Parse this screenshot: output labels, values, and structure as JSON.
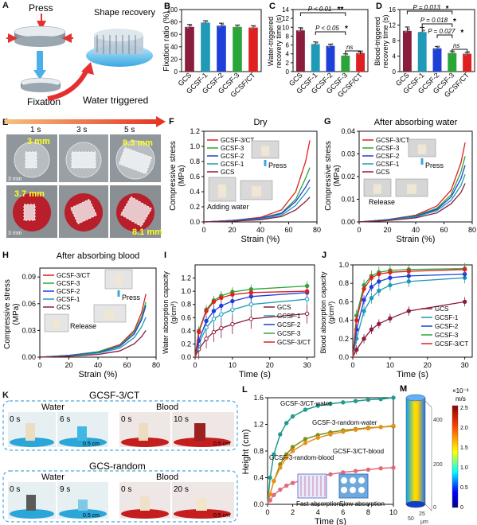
{
  "colors": {
    "GCS": "#8a1c3c",
    "GCSF1": "#1f9bb8",
    "GCSF2": "#1e3fd8",
    "GCSF3": "#2aa638",
    "GCSFCT": "#e02020",
    "pink": "#e06a7a",
    "teal": "#1f9b8f",
    "olive": "#7f8f1a",
    "orange": "#e7901a"
  },
  "panelA": {
    "letter": "A",
    "press": "Press",
    "shape_recovery": "Shape recovery",
    "fixation": "Fixation",
    "water_triggered": "Water triggered"
  },
  "panelE": {
    "letter": "E",
    "times": [
      "1 s",
      "3 s",
      "5 s"
    ],
    "labels": [
      "3 mm",
      "8.3 mm",
      "3.7 mm",
      "8.1 mm"
    ],
    "scale": [
      "3 mm",
      "3 mm"
    ]
  },
  "panelK": {
    "letter": "K",
    "groups": [
      {
        "title": "GCSF-3/CT",
        "water": "Water",
        "blood": "Blood",
        "times": [
          "0 s",
          "6 s",
          "0 s",
          "10 s"
        ],
        "scale": [
          "0.5 cm",
          "0.5 cm"
        ]
      },
      {
        "title": "GCS-random",
        "water": "Water",
        "blood": "Blood",
        "times": [
          "0 s",
          "9 s",
          "0 s",
          "20 s"
        ],
        "scale": [
          "0.5 cm",
          "0.5 cm"
        ]
      }
    ]
  },
  "panelM": {
    "letter": "M",
    "unit_top": "×10⁻³",
    "unit": "m/s",
    "ticks": [
      "2.5",
      "2.0",
      "1.5",
      "1.0",
      "0.5",
      "0"
    ],
    "axis_ticks": [
      "400",
      "200",
      "0"
    ],
    "bottom_ticks": [
      "50",
      "25"
    ],
    "um": "μm"
  },
  "chart_data": [
    {
      "panel": "B",
      "type": "bar",
      "categories": [
        "GCS",
        "GCSF-1",
        "GCSF-2",
        "GCSF-3",
        "GCSF/CT"
      ],
      "values": [
        72,
        79,
        74,
        72,
        71
      ],
      "errors": [
        4,
        3,
        4,
        3,
        3
      ],
      "ylabel": "Fixation ratio (%)",
      "ylim": [
        0,
        100
      ],
      "yticks": [
        "0",
        "20",
        "40",
        "60",
        "80",
        "100"
      ]
    },
    {
      "panel": "C",
      "type": "bar",
      "categories": [
        "GCS",
        "GCSF-1",
        "GCSF-2",
        "GCSF-3",
        "GCSF/CT"
      ],
      "values": [
        9.3,
        6.2,
        5.8,
        3.6,
        4.2
      ],
      "errors": [
        0.6,
        0.5,
        0.4,
        0.4,
        0.3
      ],
      "ylabel": "Water-triggered recovery time (s)",
      "ylim": [
        0,
        14
      ],
      "yticks": [
        "0",
        "2",
        "4",
        "6",
        "8",
        "10",
        "12",
        "14"
      ],
      "annotations": [
        {
          "text": "P < 0.01",
          "stars": "**",
          "from": 0,
          "to": 3
        },
        {
          "text": "P < 0.05",
          "stars": "*",
          "from": 1,
          "to": 3
        },
        {
          "text": "ns",
          "stars": "",
          "from": 3,
          "to": 4
        }
      ]
    },
    {
      "panel": "D",
      "type": "bar",
      "categories": [
        "GCS",
        "GCSF-1",
        "GCSF-2",
        "GCSF-3",
        "GCSF/CT"
      ],
      "values": [
        10.5,
        10.2,
        6.0,
        4.8,
        4.6
      ],
      "errors": [
        1.0,
        1.2,
        0.5,
        0.5,
        0.4
      ],
      "ylabel": "Blood-triggered recovery time (s)",
      "ylim": [
        0,
        16
      ],
      "yticks": [
        "0",
        "4",
        "8",
        "12",
        "16"
      ],
      "annotations": [
        {
          "text": "P = 0.013",
          "stars": "*",
          "from": 0,
          "to": 3
        },
        {
          "text": "P = 0.018",
          "stars": "*",
          "from": 1,
          "to": 3
        },
        {
          "text": "P = 0.027",
          "stars": "*",
          "from": 2,
          "to": 3
        },
        {
          "text": "ns",
          "stars": "",
          "from": 3,
          "to": 4
        }
      ]
    },
    {
      "panel": "F",
      "type": "line",
      "title": "Dry",
      "xlabel": "Strain (%)",
      "ylabel": "Compressive stress (MPa)",
      "xlim": [
        0,
        80
      ],
      "ylim": [
        0,
        1.2
      ],
      "xticks": [
        "0",
        "20",
        "40",
        "60",
        "80"
      ],
      "yticks": [
        "0.0",
        "0.2",
        "0.4",
        "0.6",
        "0.8",
        "1.0",
        "1.2"
      ],
      "series": [
        {
          "name": "GCSF-3/CT",
          "x": [
            0,
            20,
            40,
            55,
            65,
            72,
            75
          ],
          "y": [
            0,
            0.02,
            0.06,
            0.16,
            0.4,
            0.8,
            1.08
          ]
        },
        {
          "name": "GCSF-3",
          "x": [
            0,
            20,
            40,
            55,
            65,
            72,
            75
          ],
          "y": [
            0,
            0.02,
            0.05,
            0.12,
            0.3,
            0.58,
            0.72
          ]
        },
        {
          "name": "GCSF-2",
          "x": [
            0,
            20,
            40,
            55,
            65,
            72,
            75
          ],
          "y": [
            0,
            0.02,
            0.05,
            0.11,
            0.27,
            0.46,
            0.56
          ]
        },
        {
          "name": "GCSF-1",
          "x": [
            0,
            20,
            40,
            55,
            65,
            72,
            75
          ],
          "y": [
            0,
            0.015,
            0.04,
            0.09,
            0.22,
            0.38,
            0.46
          ]
        },
        {
          "name": "GCS",
          "x": [
            0,
            20,
            40,
            55,
            65,
            72,
            75
          ],
          "y": [
            0,
            0.01,
            0.03,
            0.07,
            0.16,
            0.27,
            0.33
          ]
        }
      ],
      "insets": [
        "Press",
        "Adding water"
      ]
    },
    {
      "panel": "G",
      "type": "line",
      "title": "After absorbing water",
      "xlabel": "Strain (%)",
      "ylabel": "Compressive stress (MPa)",
      "xlim": [
        0,
        80
      ],
      "ylim": [
        0,
        0.04
      ],
      "xticks": [
        "0",
        "20",
        "40",
        "60",
        "80"
      ],
      "yticks": [
        "0.00",
        "0.01",
        "0.02",
        "0.03",
        "0.04"
      ],
      "series": [
        {
          "name": "GCSF-3/CT",
          "x": [
            0,
            20,
            40,
            55,
            65,
            72,
            75
          ],
          "y": [
            0,
            0.001,
            0.003,
            0.007,
            0.014,
            0.026,
            0.035
          ]
        },
        {
          "name": "GCSF-3",
          "x": [
            0,
            20,
            40,
            55,
            65,
            72,
            75
          ],
          "y": [
            0,
            0.001,
            0.0027,
            0.006,
            0.012,
            0.022,
            0.029
          ]
        },
        {
          "name": "GCSF-2",
          "x": [
            0,
            20,
            40,
            55,
            65,
            72,
            75
          ],
          "y": [
            0,
            0.001,
            0.0025,
            0.0055,
            0.011,
            0.019,
            0.025
          ]
        },
        {
          "name": "GCSF-1",
          "x": [
            0,
            20,
            40,
            55,
            65,
            72,
            75
          ],
          "y": [
            0,
            0.0008,
            0.0022,
            0.005,
            0.0095,
            0.016,
            0.021
          ]
        },
        {
          "name": "GCS",
          "x": [
            0,
            20,
            40,
            55,
            65,
            72,
            75
          ],
          "y": [
            0,
            0.0006,
            0.0018,
            0.004,
            0.008,
            0.013,
            0.017
          ]
        }
      ],
      "insets": [
        "Press",
        "Release"
      ]
    },
    {
      "panel": "H",
      "type": "line",
      "title": "After absorbing blood",
      "xlabel": "Strain (%)",
      "ylabel": "Compressive stress (MPa)",
      "xlim": [
        0,
        80
      ],
      "ylim": [
        0,
        0.1
      ],
      "xticks": [
        "0",
        "20",
        "40",
        "60",
        "80"
      ],
      "yticks": [
        "0.00",
        "0.03",
        "0.06",
        "0.09"
      ],
      "series": [
        {
          "name": "GCSF-3/CT",
          "x": [
            0,
            20,
            40,
            55,
            65,
            70,
            73
          ],
          "y": [
            0,
            0.002,
            0.006,
            0.014,
            0.03,
            0.05,
            0.071
          ]
        },
        {
          "name": "GCSF-3",
          "x": [
            0,
            20,
            40,
            55,
            65,
            70,
            73
          ],
          "y": [
            0,
            0.002,
            0.006,
            0.013,
            0.028,
            0.045,
            0.062
          ]
        },
        {
          "name": "GCSF-2",
          "x": [
            0,
            20,
            40,
            55,
            65,
            70,
            73
          ],
          "y": [
            0,
            0.002,
            0.005,
            0.012,
            0.026,
            0.042,
            0.058
          ]
        },
        {
          "name": "GCSF-1",
          "x": [
            0,
            20,
            40,
            55,
            65,
            70,
            73
          ],
          "y": [
            0,
            0.0015,
            0.0045,
            0.01,
            0.022,
            0.034,
            0.045
          ]
        },
        {
          "name": "GCS",
          "x": [
            0,
            20,
            40,
            55,
            65,
            70,
            73
          ],
          "y": [
            0,
            0.001,
            0.003,
            0.007,
            0.015,
            0.023,
            0.03
          ]
        }
      ],
      "insets": [
        "Press",
        "Release"
      ]
    },
    {
      "panel": "I",
      "type": "line",
      "xlabel": "Time (s)",
      "ylabel": "Water absorption capacity (g/cm³)",
      "xlim": [
        0,
        32
      ],
      "ylim": [
        0,
        1.4
      ],
      "xticks": [
        "0",
        "10",
        "20",
        "30"
      ],
      "yticks": [
        "0.0",
        "0.2",
        "0.4",
        "0.6",
        "0.8",
        "1.0",
        "1.2"
      ],
      "series": [
        {
          "name": "GCS",
          "x": [
            0,
            1,
            3,
            5,
            7,
            10,
            15,
            30
          ],
          "y": [
            0,
            0.12,
            0.28,
            0.38,
            0.44,
            0.5,
            0.58,
            0.66
          ],
          "err": 0.15
        },
        {
          "name": "GCSF-1",
          "x": [
            0,
            1,
            3,
            5,
            7,
            10,
            15,
            30
          ],
          "y": [
            0,
            0.2,
            0.45,
            0.58,
            0.65,
            0.72,
            0.8,
            0.88
          ],
          "err": 0.1
        },
        {
          "name": "GCSF-2",
          "x": [
            0,
            1,
            3,
            5,
            7,
            10,
            15,
            30
          ],
          "y": [
            0,
            0.25,
            0.55,
            0.7,
            0.78,
            0.85,
            0.92,
            0.98
          ],
          "err": 0.08
        },
        {
          "name": "GCSF-3",
          "x": [
            0,
            1,
            3,
            5,
            7,
            10,
            15,
            30
          ],
          "y": [
            0,
            0.4,
            0.72,
            0.86,
            0.93,
            0.99,
            1.03,
            1.08
          ],
          "err": 0.07
        },
        {
          "name": "GCSF-3/CT",
          "x": [
            0,
            1,
            3,
            5,
            7,
            10,
            15,
            30
          ],
          "y": [
            0,
            0.38,
            0.7,
            0.84,
            0.9,
            0.95,
            0.98,
            1.0
          ],
          "err": 0.06
        }
      ]
    },
    {
      "panel": "J",
      "type": "line",
      "xlabel": "Time (s)",
      "ylabel": "Blood absorption capacity (g/cm³)",
      "xlim": [
        0,
        32
      ],
      "ylim": [
        0,
        1.0
      ],
      "xticks": [
        "0",
        "10",
        "20",
        "30"
      ],
      "yticks": [
        "0.0",
        "0.2",
        "0.4",
        "0.6",
        "0.8",
        "1.0"
      ],
      "series": [
        {
          "name": "GCS",
          "x": [
            0,
            1,
            3,
            5,
            7,
            10,
            15,
            30
          ],
          "y": [
            0,
            0.08,
            0.2,
            0.3,
            0.36,
            0.42,
            0.5,
            0.6
          ],
          "err": 0.05
        },
        {
          "name": "GCSF-1",
          "x": [
            0,
            1,
            3,
            5,
            7,
            10,
            15,
            30
          ],
          "y": [
            0,
            0.2,
            0.5,
            0.64,
            0.72,
            0.78,
            0.82,
            0.86
          ],
          "err": 0.06
        },
        {
          "name": "GCSF-2",
          "x": [
            0,
            1,
            3,
            5,
            7,
            10,
            15,
            30
          ],
          "y": [
            0,
            0.3,
            0.62,
            0.76,
            0.82,
            0.86,
            0.88,
            0.9
          ],
          "err": 0.05
        },
        {
          "name": "GCSF-3",
          "x": [
            0,
            1,
            3,
            5,
            7,
            10,
            15,
            30
          ],
          "y": [
            0,
            0.45,
            0.78,
            0.88,
            0.92,
            0.94,
            0.95,
            0.96
          ],
          "err": 0.06
        },
        {
          "name": "GCSF-3/CT",
          "x": [
            0,
            1,
            3,
            5,
            7,
            10,
            15,
            30
          ],
          "y": [
            0,
            0.4,
            0.74,
            0.86,
            0.9,
            0.92,
            0.93,
            0.95
          ],
          "err": 0.04
        }
      ]
    },
    {
      "panel": "L",
      "type": "line",
      "xlabel": "Time (s)",
      "ylabel": "Height (cm)",
      "xlim": [
        0,
        10
      ],
      "ylim": [
        0,
        1.6
      ],
      "xticks": [
        "0",
        "2",
        "4",
        "6",
        "8",
        "10"
      ],
      "yticks": [
        "0.0",
        "0.4",
        "0.8",
        "1.2",
        "1.6"
      ],
      "series": [
        {
          "name": "GCSF-3/CT-water",
          "x": [
            0,
            0.2,
            0.5,
            1,
            1.5,
            2,
            3,
            4,
            5,
            6,
            7,
            8,
            9,
            10
          ],
          "y": [
            0,
            0.4,
            0.75,
            1.05,
            1.22,
            1.32,
            1.42,
            1.48,
            1.51,
            1.53,
            1.55,
            1.57,
            1.58,
            1.6
          ]
        },
        {
          "name": "GCSF-3-random-water",
          "x": [
            0,
            0.2,
            0.5,
            1,
            1.5,
            2,
            3,
            4,
            5,
            6,
            7,
            8,
            9,
            10
          ],
          "y": [
            0,
            0.15,
            0.35,
            0.6,
            0.75,
            0.86,
            0.98,
            1.04,
            1.08,
            1.11,
            1.13,
            1.15,
            1.16,
            1.17
          ]
        },
        {
          "name": "GCSF-3/CT-blood",
          "x": [
            0,
            0.2,
            0.5,
            1,
            1.5,
            2,
            3,
            4,
            5,
            6,
            7,
            8,
            9,
            10
          ],
          "y": [
            0,
            0.15,
            0.35,
            0.55,
            0.7,
            0.8,
            0.92,
            1.0,
            1.05,
            1.09,
            1.12,
            1.14,
            1.16,
            1.18
          ]
        },
        {
          "name": "GCSF-3-random-blood",
          "x": [
            0,
            0.2,
            0.5,
            1,
            1.5,
            2,
            3,
            4,
            5,
            6,
            7,
            8,
            9,
            10
          ],
          "y": [
            0,
            0.06,
            0.14,
            0.22,
            0.28,
            0.32,
            0.38,
            0.42,
            0.45,
            0.48,
            0.5,
            0.52,
            0.54,
            0.55
          ]
        }
      ],
      "insets": [
        "Fast absorption",
        "Slow absorption"
      ]
    }
  ]
}
